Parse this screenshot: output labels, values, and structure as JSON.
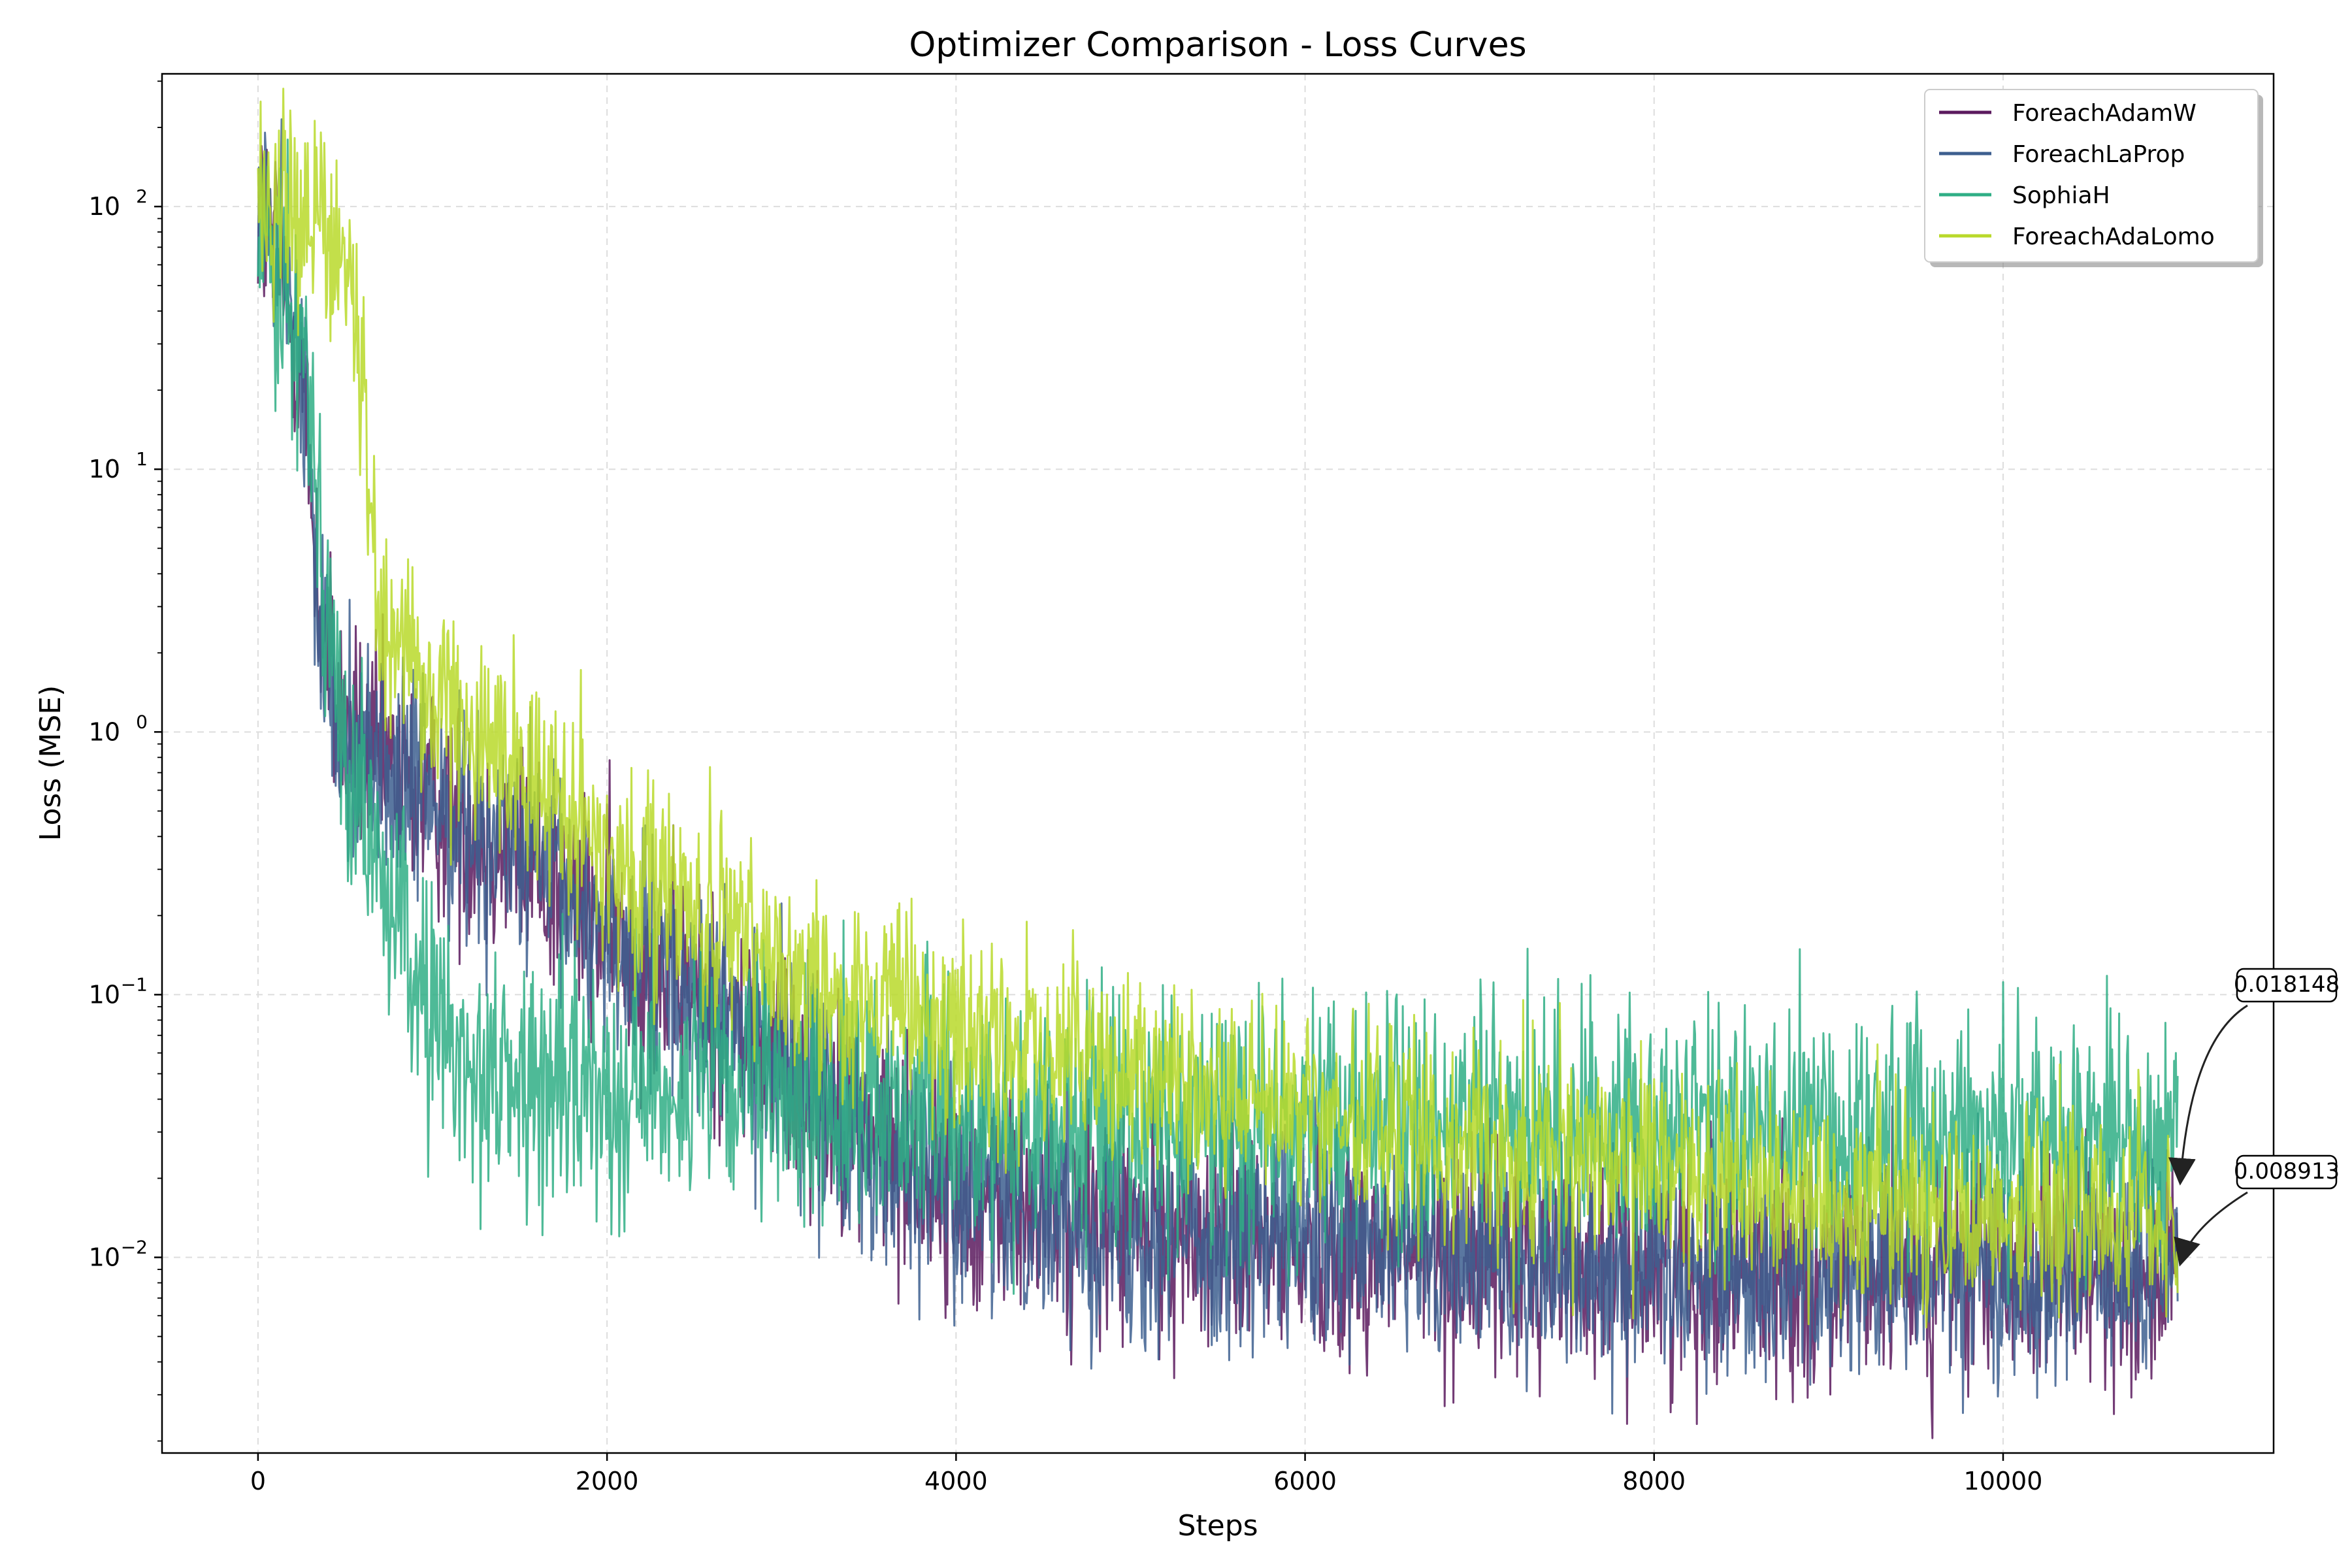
{
  "chart_data": {
    "type": "line",
    "title": "Optimizer Comparison - Loss Curves",
    "xlabel": "Steps",
    "ylabel": "Loss (MSE)",
    "xlim": [
      -550,
      11550
    ],
    "ylim": [
      0.0018,
      320
    ],
    "yscale": "log",
    "x_ticks": [
      0,
      2000,
      4000,
      6000,
      8000,
      10000
    ],
    "x_tick_labels": [
      "0",
      "2000",
      "4000",
      "6000",
      "8000",
      "10000"
    ],
    "y_ticks": [
      0.01,
      0.1,
      1,
      10,
      100
    ],
    "y_tick_bases": [
      "10",
      "10",
      "10",
      "10",
      "10"
    ],
    "y_tick_exps": [
      "−2",
      "−1",
      "0",
      "1",
      "2"
    ],
    "grid": true,
    "legend_position": "top-right",
    "series": [
      {
        "name": "ForeachAdamW",
        "color": "#5b1a5e",
        "points": [
          [
            0,
            100
          ],
          [
            120,
            60
          ],
          [
            250,
            25
          ],
          [
            350,
            3
          ],
          [
            450,
            1.2
          ],
          [
            600,
            0.8
          ],
          [
            1000,
            0.55
          ],
          [
            1500,
            0.35
          ],
          [
            2000,
            0.17
          ],
          [
            2500,
            0.1
          ],
          [
            3000,
            0.055
          ],
          [
            3500,
            0.03
          ],
          [
            4000,
            0.017
          ],
          [
            5000,
            0.013
          ],
          [
            6000,
            0.011
          ],
          [
            7000,
            0.01
          ],
          [
            8000,
            0.0095
          ],
          [
            9000,
            0.009
          ],
          [
            10000,
            0.0088
          ],
          [
            11000,
            0.0086
          ]
        ],
        "noise": 0.22
      },
      {
        "name": "ForeachLaProp",
        "color": "#3d5f8f",
        "points": [
          [
            0,
            100
          ],
          [
            120,
            60
          ],
          [
            250,
            25
          ],
          [
            350,
            3
          ],
          [
            450,
            1.2
          ],
          [
            600,
            0.8
          ],
          [
            1000,
            0.55
          ],
          [
            1500,
            0.35
          ],
          [
            2000,
            0.17
          ],
          [
            2500,
            0.1
          ],
          [
            3000,
            0.055
          ],
          [
            3500,
            0.03
          ],
          [
            4000,
            0.018
          ],
          [
            5000,
            0.013
          ],
          [
            6000,
            0.011
          ],
          [
            7000,
            0.01
          ],
          [
            8000,
            0.0095
          ],
          [
            9000,
            0.009
          ],
          [
            10000,
            0.0088
          ],
          [
            11000,
            0.0086
          ]
        ],
        "noise": 0.22
      },
      {
        "name": "SophiaH",
        "color": "#2fae85",
        "points": [
          [
            0,
            100
          ],
          [
            150,
            60
          ],
          [
            300,
            20
          ],
          [
            400,
            3
          ],
          [
            500,
            0.7
          ],
          [
            700,
            0.3
          ],
          [
            900,
            0.12
          ],
          [
            1100,
            0.06
          ],
          [
            1500,
            0.045
          ],
          [
            2000,
            0.045
          ],
          [
            2500,
            0.045
          ],
          [
            3000,
            0.04
          ],
          [
            3500,
            0.04
          ],
          [
            4000,
            0.035
          ],
          [
            5000,
            0.032
          ],
          [
            6000,
            0.032
          ],
          [
            7000,
            0.032
          ],
          [
            8000,
            0.032
          ],
          [
            9000,
            0.03
          ],
          [
            10000,
            0.03
          ],
          [
            11000,
            0.029
          ]
        ],
        "noise": 0.24
      },
      {
        "name": "ForeachAdaLomo",
        "color": "#b9d92a",
        "points": [
          [
            0,
            110
          ],
          [
            300,
            100
          ],
          [
            500,
            60
          ],
          [
            600,
            20
          ],
          [
            700,
            3
          ],
          [
            1000,
            1.3
          ],
          [
            1500,
            0.75
          ],
          [
            2000,
            0.35
          ],
          [
            2500,
            0.2
          ],
          [
            3000,
            0.13
          ],
          [
            3500,
            0.09
          ],
          [
            4000,
            0.07
          ],
          [
            5000,
            0.05
          ],
          [
            6000,
            0.035
          ],
          [
            7000,
            0.027
          ],
          [
            8000,
            0.021
          ],
          [
            9000,
            0.017
          ],
          [
            10000,
            0.015
          ],
          [
            11000,
            0.014
          ]
        ],
        "noise": 0.2
      }
    ],
    "annotations": [
      {
        "text": "0.018148",
        "x": 11000,
        "y": 0.018148
      },
      {
        "text": "0.008913",
        "x": 11000,
        "y": 0.008913
      }
    ]
  }
}
